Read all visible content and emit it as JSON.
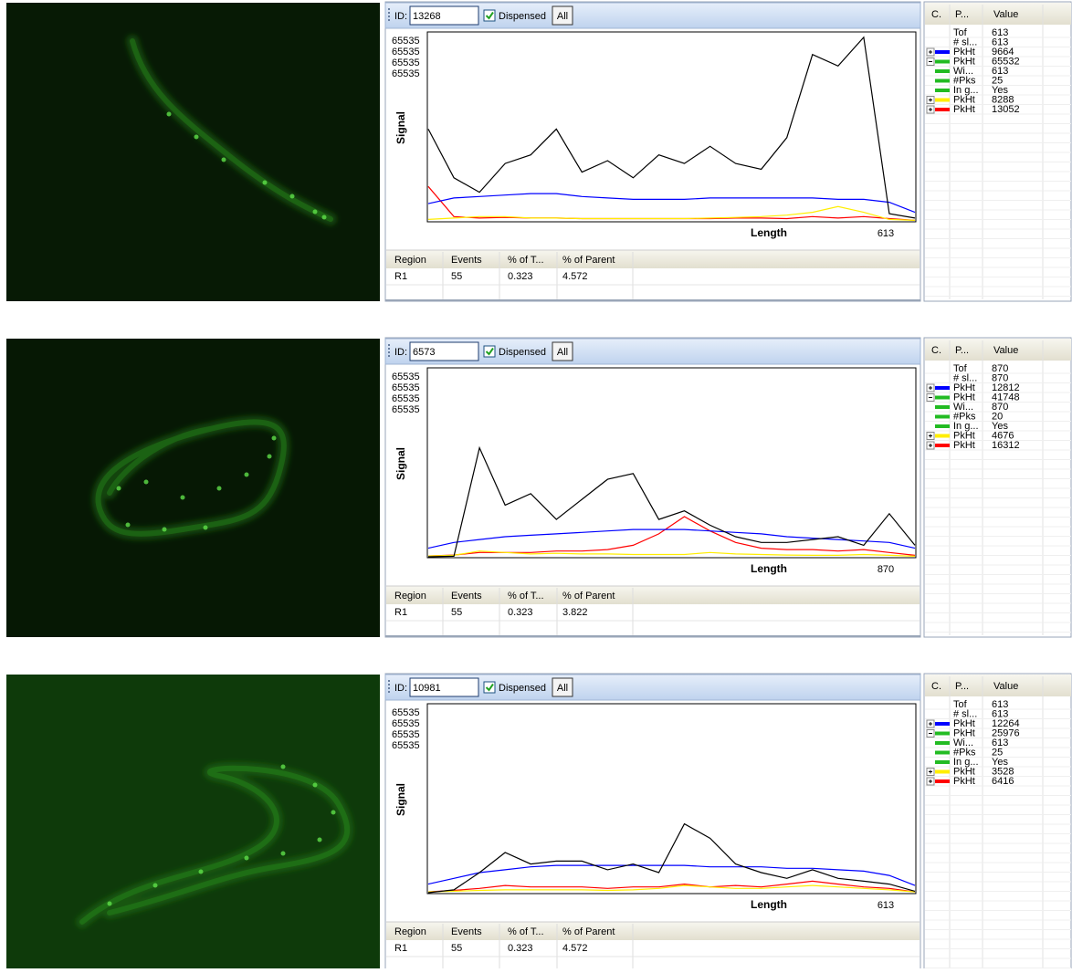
{
  "panels": [
    {
      "image": {
        "background": "#071a05"
      },
      "toolbar": {
        "id_label": "ID:",
        "id": 13268,
        "checkbox": "Dispensed",
        "button": "All"
      },
      "channel_labels": [
        {
          "text": 65535,
          "color": "#2020ff"
        },
        {
          "text": 65535,
          "color": "#33cc33"
        },
        {
          "text": 65535,
          "color": "#ffee00"
        },
        {
          "text": 65535,
          "color": "#ff2020"
        }
      ],
      "y_label": "Signal",
      "x_label": "Length",
      "x_max": 613,
      "traces": [
        {
          "color": "#000000",
          "values": [
            32000,
            15000,
            10000,
            20000,
            23000,
            32000,
            17000,
            21000,
            15000,
            23000,
            20000,
            26000,
            20000,
            18000,
            29000,
            58000,
            54000,
            64000,
            2500,
            1000
          ]
        },
        {
          "color": "#0000ff",
          "values": [
            6000,
            8000,
            8500,
            9000,
            9500,
            9500,
            8500,
            8000,
            7500,
            7500,
            7500,
            8000,
            8000,
            8000,
            8000,
            8000,
            7500,
            7500,
            6500,
            3000
          ]
        },
        {
          "color": "#ffee00",
          "values": [
            500,
            1000,
            1500,
            1500,
            1000,
            1000,
            800,
            800,
            800,
            800,
            800,
            1000,
            1200,
            1500,
            2000,
            3000,
            5000,
            3000,
            500,
            200
          ]
        },
        {
          "color": "#ff0000",
          "values": [
            12000,
            1500,
            1000,
            1200,
            1000,
            1000,
            800,
            800,
            800,
            800,
            800,
            800,
            1000,
            1000,
            800,
            1500,
            1000,
            1500,
            800,
            200
          ]
        }
      ],
      "region_table": {
        "headers": [
          "Region",
          "Events",
          "% of T...",
          "% of Parent"
        ],
        "rows": [
          [
            "R1",
            55,
            0.323,
            4.572
          ]
        ]
      },
      "param_table": {
        "headers": [
          "C.",
          "P...",
          "Value"
        ],
        "rows": [
          {
            "param": "Tof",
            "value": 613
          },
          {
            "param": "# sl...",
            "value": 613
          },
          {
            "param": "PkHt",
            "value": 9664,
            "swatch": "#0000ff",
            "expanded": false
          },
          {
            "param": "PkHt",
            "value": 65532,
            "swatch": "#22bb22",
            "expanded": true
          },
          {
            "param": "Wi...",
            "value": 613,
            "swatch": "#22bb22"
          },
          {
            "param": "#Pks",
            "value": 25,
            "swatch": "#22bb22"
          },
          {
            "param": "In g...",
            "value": "Yes",
            "swatch": "#22bb22"
          },
          {
            "param": "PkHt",
            "value": 8288,
            "swatch": "#ffee00",
            "expanded": false
          },
          {
            "param": "PkHt",
            "value": 13052,
            "swatch": "#ff0000",
            "expanded": false
          }
        ]
      }
    },
    {
      "image": {
        "background": "#061804"
      },
      "toolbar": {
        "id_label": "ID:",
        "id": 6573,
        "checkbox": "Dispensed",
        "button": "All"
      },
      "channel_labels": [
        {
          "text": 65535,
          "color": "#2020ff"
        },
        {
          "text": 65535,
          "color": "#33cc33"
        },
        {
          "text": 65535,
          "color": "#ffee00"
        },
        {
          "text": 65535,
          "color": "#ff2020"
        }
      ],
      "y_label": "Signal",
      "x_label": "Length",
      "x_max": 870,
      "traces": [
        {
          "color": "#000000",
          "values": [
            0,
            200,
            38000,
            18000,
            22000,
            13000,
            20000,
            27000,
            29000,
            13000,
            16000,
            11000,
            7000,
            5000,
            5000,
            6000,
            7000,
            4000,
            15000,
            4000
          ]
        },
        {
          "color": "#0000ff",
          "values": [
            3000,
            5000,
            6000,
            7000,
            7500,
            8000,
            8500,
            9000,
            9500,
            9500,
            9500,
            9000,
            8500,
            8000,
            7000,
            6500,
            6000,
            5500,
            5000,
            3000
          ]
        },
        {
          "color": "#ffee00",
          "values": [
            300,
            500,
            2000,
            1500,
            1000,
            1200,
            1000,
            1000,
            800,
            800,
            800,
            1500,
            1000,
            800,
            600,
            500,
            500,
            800,
            500,
            200
          ]
        },
        {
          "color": "#ff0000",
          "values": [
            300,
            600,
            1500,
            1500,
            1500,
            2000,
            2000,
            2500,
            4000,
            8000,
            14000,
            9000,
            5000,
            3000,
            2500,
            2500,
            2000,
            2500,
            1500,
            500
          ]
        }
      ],
      "region_table": {
        "headers": [
          "Region",
          "Events",
          "% of T...",
          "% of Parent"
        ],
        "rows": [
          [
            "R1",
            55,
            0.323,
            3.822
          ]
        ]
      },
      "param_table": {
        "headers": [
          "C.",
          "P...",
          "Value"
        ],
        "rows": [
          {
            "param": "Tof",
            "value": 870
          },
          {
            "param": "# sl...",
            "value": 870
          },
          {
            "param": "PkHt",
            "value": 12812,
            "swatch": "#0000ff",
            "expanded": false
          },
          {
            "param": "PkHt",
            "value": 41748,
            "swatch": "#22bb22",
            "expanded": true
          },
          {
            "param": "Wi...",
            "value": 870,
            "swatch": "#22bb22"
          },
          {
            "param": "#Pks",
            "value": 20,
            "swatch": "#22bb22"
          },
          {
            "param": "In g...",
            "value": "Yes",
            "swatch": "#22bb22"
          },
          {
            "param": "PkHt",
            "value": 4676,
            "swatch": "#ffee00",
            "expanded": false
          },
          {
            "param": "PkHt",
            "value": 16312,
            "swatch": "#ff0000",
            "expanded": false
          }
        ]
      }
    },
    {
      "image": {
        "background": "#0e3a0a"
      },
      "toolbar": {
        "id_label": "ID:",
        "id": 10981,
        "checkbox": "Dispensed",
        "button": "All"
      },
      "channel_labels": [
        {
          "text": 65535,
          "color": "#2020ff"
        },
        {
          "text": 65535,
          "color": "#33cc33"
        },
        {
          "text": 65535,
          "color": "#ffee00"
        },
        {
          "text": 65535,
          "color": "#ff2020"
        }
      ],
      "y_label": "Signal",
      "x_label": "Length",
      "x_max": 613,
      "traces": [
        {
          "color": "#000000",
          "values": [
            0,
            1000,
            7000,
            14000,
            10000,
            11000,
            11000,
            8000,
            10000,
            7000,
            24000,
            19000,
            10000,
            7000,
            5000,
            8000,
            5000,
            4000,
            3000,
            500
          ]
        },
        {
          "color": "#0000ff",
          "values": [
            3000,
            5000,
            7000,
            8000,
            9000,
            9500,
            9500,
            9500,
            9500,
            9500,
            9500,
            9000,
            9000,
            9000,
            8500,
            8500,
            8000,
            7500,
            6000,
            2500
          ]
        },
        {
          "color": "#ffee00",
          "values": [
            300,
            500,
            800,
            1000,
            1000,
            1000,
            1000,
            800,
            1000,
            1500,
            2500,
            2000,
            1500,
            1500,
            2000,
            2500,
            2000,
            1500,
            1000,
            300
          ]
        },
        {
          "color": "#ff0000",
          "values": [
            300,
            800,
            1500,
            2500,
            2000,
            2000,
            2000,
            1500,
            2000,
            2000,
            3000,
            2000,
            2500,
            2000,
            3000,
            4000,
            3000,
            2000,
            1500,
            300
          ]
        }
      ],
      "region_table": {
        "headers": [
          "Region",
          "Events",
          "% of T...",
          "% of Parent"
        ],
        "rows": [
          [
            "R1",
            55,
            0.323,
            4.572
          ]
        ]
      },
      "param_table": {
        "headers": [
          "C.",
          "P...",
          "Value"
        ],
        "rows": [
          {
            "param": "Tof",
            "value": 613
          },
          {
            "param": "# sl...",
            "value": 613
          },
          {
            "param": "PkHt",
            "value": 12264,
            "swatch": "#0000ff",
            "expanded": false
          },
          {
            "param": "PkHt",
            "value": 25976,
            "swatch": "#22bb22",
            "expanded": true
          },
          {
            "param": "Wi...",
            "value": 613,
            "swatch": "#22bb22"
          },
          {
            "param": "#Pks",
            "value": 25,
            "swatch": "#22bb22"
          },
          {
            "param": "In g...",
            "value": "Yes",
            "swatch": "#22bb22"
          },
          {
            "param": "PkHt",
            "value": 3528,
            "swatch": "#ffee00",
            "expanded": false
          },
          {
            "param": "PkHt",
            "value": 6416,
            "swatch": "#ff0000",
            "expanded": false
          }
        ]
      }
    }
  ]
}
